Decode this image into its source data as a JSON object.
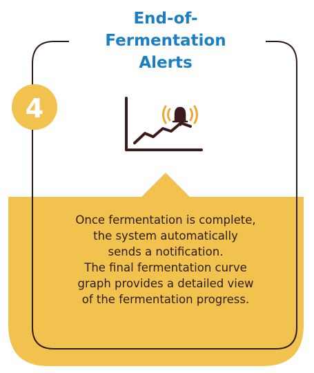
{
  "step": "4",
  "title": [
    "End-of-",
    "Fermentation",
    "Alerts"
  ],
  "description": [
    "Once fermentation is complete,",
    "the system automatically",
    "sends a notification.",
    "The final fermentation curve",
    "graph provides a detailed view",
    "of the fermentation progress."
  ]
}
